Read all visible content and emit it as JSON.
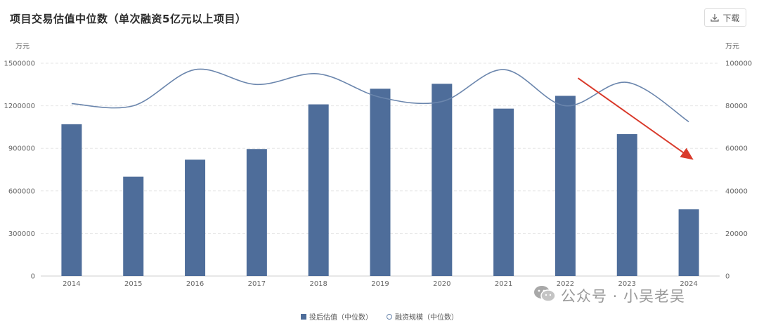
{
  "title": "项目交易估值中位数（单次融资5亿元以上项目）",
  "download": {
    "label": "下载",
    "icon": "download-icon"
  },
  "units": {
    "left": "万元",
    "right": "万元"
  },
  "watermark": {
    "icon": "wechat-icon",
    "text": "公众号 · 小吴老吴"
  },
  "colors": {
    "bar": "#4e6d9a",
    "line": "#6b86ad",
    "arrow": "#d93a2b"
  },
  "chart_data": {
    "type": "bar",
    "categories": [
      "2014",
      "2015",
      "2016",
      "2017",
      "2018",
      "2019",
      "2020",
      "2021",
      "2022",
      "2023",
      "2024"
    ],
    "series": [
      {
        "name": "投后估值（中位数）",
        "type": "bar",
        "axis": "left",
        "values": [
          1070000,
          700000,
          820000,
          895000,
          1210000,
          1320000,
          1355000,
          1180000,
          1270000,
          1000000,
          470000
        ]
      },
      {
        "name": "融资规模（中位数）",
        "type": "line",
        "axis": "right",
        "values": [
          81000,
          80000,
          97000,
          90000,
          95000,
          84000,
          82000,
          97000,
          80000,
          91000,
          72500
        ]
      }
    ],
    "yleft": {
      "ylim": [
        0,
        1500000
      ],
      "ticks": [
        0,
        300000,
        600000,
        900000,
        1200000,
        1500000
      ]
    },
    "yright": {
      "ylim": [
        0,
        100000
      ],
      "ticks": [
        0,
        20000,
        40000,
        60000,
        80000,
        100000
      ]
    },
    "grid": true,
    "legend_position": "bottom",
    "annotation": {
      "type": "arrow",
      "from_category": "2022",
      "to_category": "2024",
      "from_value": 93000,
      "to_value": 55000
    }
  }
}
